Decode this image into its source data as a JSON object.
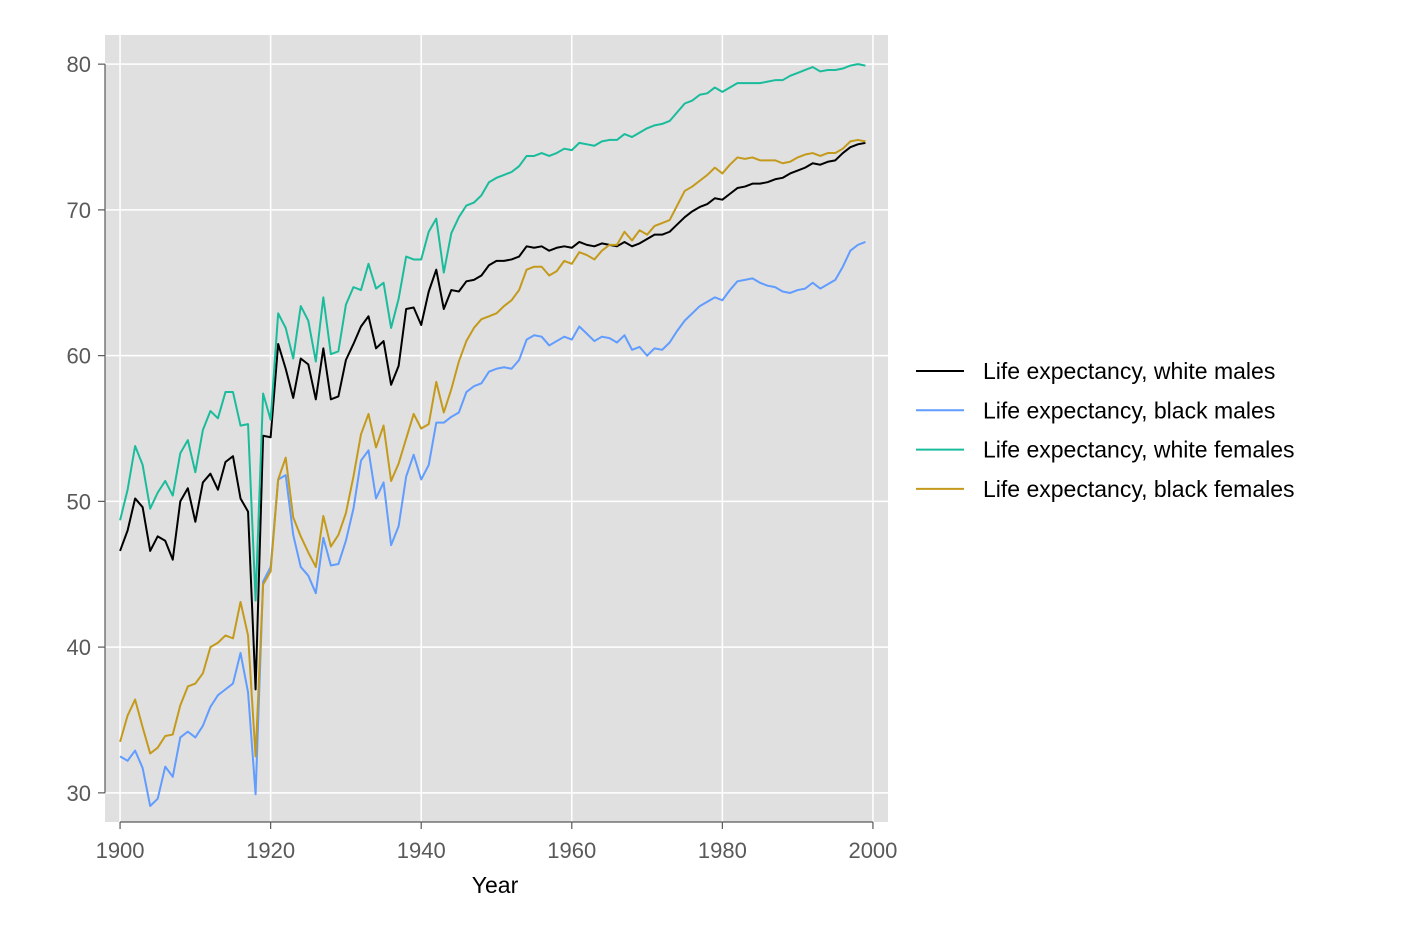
{
  "chart_data": {
    "type": "line",
    "title": "",
    "xlabel": "Year",
    "ylabel": "",
    "xlim": [
      1898,
      2002
    ],
    "ylim": [
      28,
      82
    ],
    "xticks": [
      1900,
      1920,
      1940,
      1960,
      1980,
      2000
    ],
    "yticks": [
      30,
      40,
      50,
      60,
      70,
      80
    ],
    "grid": true,
    "legend_position": "right",
    "colors": {
      "background": "#e0e0e0",
      "grid": "#ffffff",
      "tick_text": "#595959"
    },
    "x": [
      1900,
      1901,
      1902,
      1903,
      1904,
      1905,
      1906,
      1907,
      1908,
      1909,
      1910,
      1911,
      1912,
      1913,
      1914,
      1915,
      1916,
      1917,
      1918,
      1919,
      1920,
      1921,
      1922,
      1923,
      1924,
      1925,
      1926,
      1927,
      1928,
      1929,
      1930,
      1931,
      1932,
      1933,
      1934,
      1935,
      1936,
      1937,
      1938,
      1939,
      1940,
      1941,
      1942,
      1943,
      1944,
      1945,
      1946,
      1947,
      1948,
      1949,
      1950,
      1951,
      1952,
      1953,
      1954,
      1955,
      1956,
      1957,
      1958,
      1959,
      1960,
      1961,
      1962,
      1963,
      1964,
      1965,
      1966,
      1967,
      1968,
      1969,
      1970,
      1971,
      1972,
      1973,
      1974,
      1975,
      1976,
      1977,
      1978,
      1979,
      1980,
      1981,
      1982,
      1983,
      1984,
      1985,
      1986,
      1987,
      1988,
      1989,
      1990,
      1991,
      1992,
      1993,
      1994,
      1995,
      1996,
      1997,
      1998,
      1999
    ],
    "series": [
      {
        "name": "Life expectancy, white males",
        "color": "#000000",
        "values": [
          46.6,
          48.0,
          50.2,
          49.6,
          46.6,
          47.6,
          47.3,
          46.0,
          50.0,
          50.9,
          48.6,
          51.3,
          51.9,
          50.8,
          52.7,
          53.1,
          50.2,
          49.3,
          37.1,
          54.5,
          54.4,
          60.8,
          59.1,
          57.1,
          59.8,
          59.4,
          57.0,
          60.5,
          57.0,
          57.2,
          59.7,
          60.8,
          62.0,
          62.7,
          60.5,
          61.0,
          58.0,
          59.3,
          63.2,
          63.3,
          62.1,
          64.4,
          65.9,
          63.2,
          64.5,
          64.4,
          65.1,
          65.2,
          65.5,
          66.2,
          66.5,
          66.5,
          66.6,
          66.8,
          67.5,
          67.4,
          67.5,
          67.2,
          67.4,
          67.5,
          67.4,
          67.8,
          67.6,
          67.5,
          67.7,
          67.6,
          67.5,
          67.8,
          67.5,
          67.7,
          68.0,
          68.3,
          68.3,
          68.5,
          69.0,
          69.5,
          69.9,
          70.2,
          70.4,
          70.8,
          70.7,
          71.1,
          71.5,
          71.6,
          71.8,
          71.8,
          71.9,
          72.1,
          72.2,
          72.5,
          72.7,
          72.9,
          73.2,
          73.1,
          73.3,
          73.4,
          73.9,
          74.3,
          74.5,
          74.6
        ]
      },
      {
        "name": "Life expectancy, black males",
        "color": "#619cff",
        "values": [
          32.5,
          32.2,
          32.9,
          31.7,
          29.1,
          29.6,
          31.8,
          31.1,
          33.8,
          34.2,
          33.8,
          34.6,
          35.9,
          36.7,
          37.1,
          37.5,
          39.6,
          36.9,
          29.9,
          44.5,
          45.5,
          51.5,
          51.8,
          47.7,
          45.5,
          44.9,
          43.7,
          47.5,
          45.6,
          45.7,
          47.3,
          49.5,
          52.8,
          53.5,
          50.2,
          51.3,
          47.0,
          48.3,
          51.7,
          53.2,
          51.5,
          52.5,
          55.4,
          55.4,
          55.8,
          56.1,
          57.5,
          57.9,
          58.1,
          58.9,
          59.1,
          59.2,
          59.1,
          59.7,
          61.1,
          61.4,
          61.3,
          60.7,
          61.0,
          61.3,
          61.1,
          62.0,
          61.5,
          61.0,
          61.3,
          61.2,
          60.9,
          61.4,
          60.4,
          60.6,
          60.0,
          60.5,
          60.4,
          60.9,
          61.7,
          62.4,
          62.9,
          63.4,
          63.7,
          64.0,
          63.8,
          64.5,
          65.1,
          65.2,
          65.3,
          65.0,
          64.8,
          64.7,
          64.4,
          64.3,
          64.5,
          64.6,
          65.0,
          64.6,
          64.9,
          65.2,
          66.1,
          67.2,
          67.6,
          67.8
        ]
      },
      {
        "name": "Life expectancy, white females",
        "color": "#1abc9c",
        "values": [
          48.7,
          50.8,
          53.8,
          52.5,
          49.5,
          50.6,
          51.4,
          50.4,
          53.3,
          54.2,
          52.0,
          54.9,
          56.2,
          55.7,
          57.5,
          57.5,
          55.2,
          55.3,
          43.2,
          57.4,
          55.6,
          62.9,
          61.9,
          59.8,
          63.4,
          62.4,
          59.6,
          64.0,
          60.1,
          60.3,
          63.5,
          64.7,
          64.5,
          66.3,
          64.6,
          65.0,
          61.9,
          63.9,
          66.8,
          66.6,
          66.6,
          68.5,
          69.4,
          65.7,
          68.4,
          69.5,
          70.3,
          70.5,
          71.0,
          71.9,
          72.2,
          72.4,
          72.6,
          73.0,
          73.7,
          73.7,
          73.9,
          73.7,
          73.9,
          74.2,
          74.1,
          74.6,
          74.5,
          74.4,
          74.7,
          74.8,
          74.8,
          75.2,
          75.0,
          75.3,
          75.6,
          75.8,
          75.9,
          76.1,
          76.7,
          77.3,
          77.5,
          77.9,
          78.0,
          78.4,
          78.1,
          78.4,
          78.7,
          78.7,
          78.7,
          78.7,
          78.8,
          78.9,
          78.9,
          79.2,
          79.4,
          79.6,
          79.8,
          79.5,
          79.6,
          79.6,
          79.7,
          79.9,
          80.0,
          79.9
        ]
      },
      {
        "name": "Life expectancy, black females",
        "color": "#c49a1c",
        "values": [
          33.5,
          35.3,
          36.4,
          34.5,
          32.7,
          33.1,
          33.9,
          34.0,
          36.0,
          37.3,
          37.5,
          38.2,
          40.0,
          40.3,
          40.8,
          40.6,
          43.1,
          40.8,
          32.5,
          44.3,
          45.2,
          51.5,
          53.0,
          48.9,
          47.6,
          46.5,
          45.5,
          49.0,
          46.9,
          47.7,
          49.2,
          51.7,
          54.6,
          56.0,
          53.7,
          55.2,
          51.4,
          52.6,
          54.3,
          56.0,
          55.0,
          55.3,
          58.2,
          56.1,
          57.7,
          59.6,
          61.0,
          61.9,
          62.5,
          62.7,
          62.9,
          63.4,
          63.8,
          64.5,
          65.9,
          66.1,
          66.1,
          65.5,
          65.8,
          66.5,
          66.3,
          67.1,
          66.9,
          66.6,
          67.2,
          67.6,
          67.6,
          68.5,
          67.9,
          68.6,
          68.3,
          68.9,
          69.1,
          69.3,
          70.3,
          71.3,
          71.6,
          72.0,
          72.4,
          72.9,
          72.5,
          73.1,
          73.6,
          73.5,
          73.6,
          73.4,
          73.4,
          73.4,
          73.2,
          73.3,
          73.6,
          73.8,
          73.9,
          73.7,
          73.9,
          73.9,
          74.2,
          74.7,
          74.8,
          74.7
        ]
      }
    ]
  }
}
